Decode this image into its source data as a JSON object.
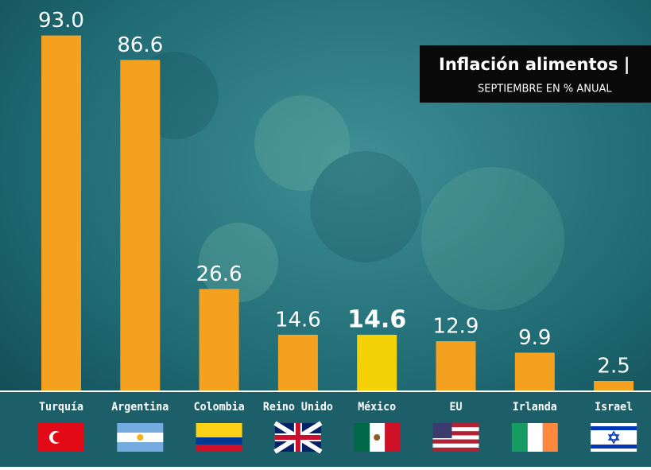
{
  "chart_data": {
    "type": "bar",
    "title": "Inflación alimentos |",
    "subtitle": "SEPTIEMBRE EN % ANUAL",
    "categories": [
      "Turquía",
      "Argentina",
      "Colombia",
      "Reino Unido",
      "México",
      "EU",
      "Irlanda",
      "Israel"
    ],
    "values": [
      93.0,
      86.6,
      26.6,
      14.6,
      14.6,
      12.9,
      9.9,
      2.5
    ],
    "value_labels": [
      "93.0",
      "86.6",
      "26.6",
      "14.6",
      "14.6",
      "12.9",
      "9.9",
      "2.5"
    ],
    "colors": [
      "#f4a11f",
      "#f4a11f",
      "#f4a11f",
      "#f4a11f",
      "#f5d207",
      "#f4a11f",
      "#f4a11f",
      "#f4a11f"
    ]
  }
}
